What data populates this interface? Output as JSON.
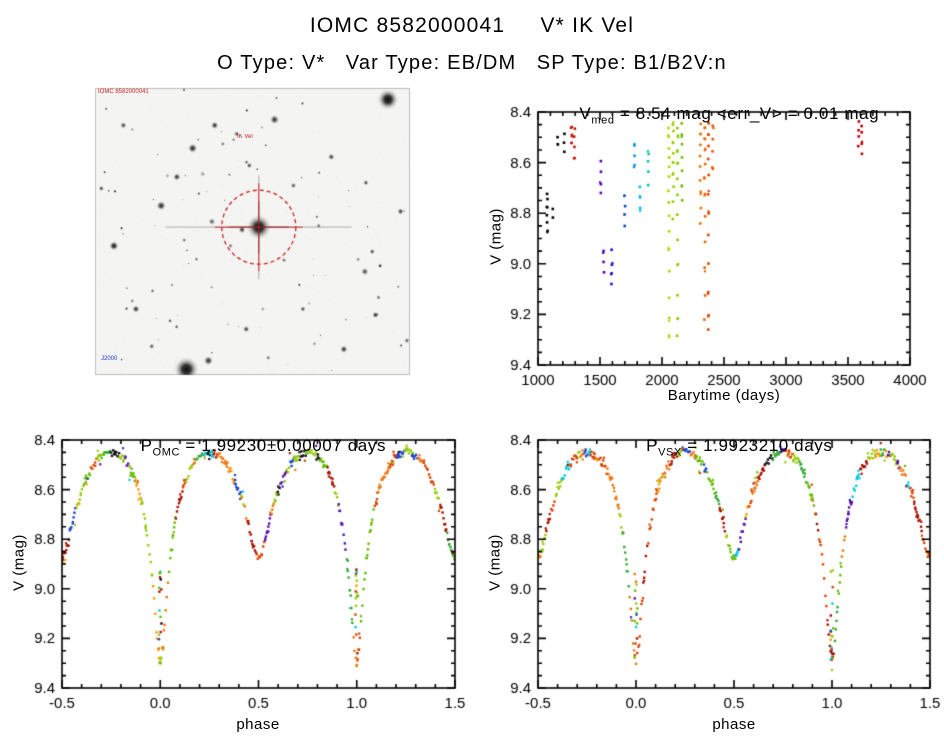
{
  "page": {
    "title": "IOMC 8582000041     V* IK Vel",
    "subtitle": "O Type: V*   Var Type: EB/DM   SP Type: B1/B2V:n"
  },
  "finder": {
    "top_left_label": "IOMC 8582000041",
    "target_label": "IK Vel",
    "bottom_left_label": "J2000",
    "circle_color": "#cc2222",
    "seed": 42,
    "random_stars": 80,
    "stars_fixed": [
      [
        52,
        48.5,
        13,
        1
      ],
      [
        93,
        4,
        11,
        1
      ],
      [
        29,
        98,
        13,
        1
      ],
      [
        36,
        95,
        5,
        0.8
      ],
      [
        6,
        55,
        5,
        0.9
      ],
      [
        2,
        35,
        3,
        0.7
      ],
      [
        31,
        21,
        5,
        0.85
      ],
      [
        38,
        13,
        4,
        0.8
      ],
      [
        45,
        16,
        3,
        0.7
      ],
      [
        26,
        31,
        4,
        0.8
      ],
      [
        21,
        41,
        5,
        0.85
      ],
      [
        49,
        27,
        3,
        0.7
      ],
      [
        57,
        11,
        5,
        0.8
      ],
      [
        75,
        24,
        3.5,
        0.75
      ],
      [
        86,
        33,
        3,
        0.7
      ],
      [
        97,
        43,
        3.5,
        0.75
      ],
      [
        88,
        57,
        3,
        0.7
      ],
      [
        79,
        91,
        4,
        0.8
      ],
      [
        66,
        77,
        3,
        0.7
      ],
      [
        48,
        84,
        3.5,
        0.75
      ],
      [
        13,
        77,
        4,
        0.8
      ],
      [
        9,
        13,
        3.5,
        0.7
      ],
      [
        60,
        60,
        2.5,
        0.6
      ],
      [
        71,
        48,
        2.5,
        0.6
      ],
      [
        63,
        34,
        3,
        0.65
      ],
      [
        43,
        55,
        2.5,
        0.6
      ],
      [
        18,
        90,
        3,
        0.65
      ],
      [
        55,
        94,
        2.5,
        0.6
      ],
      [
        90,
        73,
        2.5,
        0.6
      ],
      [
        99,
        88,
        3,
        0.6
      ],
      [
        44,
        18,
        2,
        0.6
      ]
    ]
  },
  "chart_data": [
    {
      "id": "v_vs_time",
      "type": "scatter",
      "title_prefix": "V",
      "title_sub": "med",
      "title_rest": " = 8.54 mag <err_V> = 0.01 mag",
      "xlabel": "Barytime (days)",
      "ylabel": "V (mag)",
      "xlim": [
        1000,
        4000
      ],
      "ylim": [
        8.4,
        9.4
      ],
      "y_inverted_mag_axis": true,
      "xticks": [
        1000,
        1500,
        2000,
        2500,
        3000,
        3500,
        4000
      ],
      "xtick_labels": [
        "1000",
        "1500",
        "2000",
        "2500",
        "3000",
        "3500",
        "4000"
      ],
      "yticks": [
        8.4,
        8.6,
        8.8,
        9.0,
        9.2,
        9.4
      ],
      "ytick_labels": [
        "8.4",
        "8.6",
        "8.8",
        "9.0",
        "9.2",
        "9.4"
      ],
      "x_minor_div": 5,
      "y_minor_div": 4,
      "clusters": [
        {
          "t": 1075,
          "color": "#000000",
          "v": [
            8.72,
            8.75,
            8.78,
            8.81,
            8.84,
            8.87
          ]
        },
        {
          "t": 1120,
          "color": "#000000",
          "v": [
            8.78,
            8.82
          ]
        },
        {
          "t": 1160,
          "color": "#000000",
          "v": [
            8.5,
            8.53
          ]
        },
        {
          "t": 1210,
          "color": "#000000",
          "v": [
            8.49,
            8.52,
            8.56
          ]
        },
        {
          "t": 1270,
          "color": "#cc1100",
          "v": [
            8.46,
            8.49,
            8.52
          ]
        },
        {
          "t": 1295,
          "color": "#cc1100",
          "v": [
            8.47,
            8.5,
            8.54,
            8.58
          ]
        },
        {
          "t": 1505,
          "color": "#5500bb",
          "v": [
            8.6,
            8.64,
            8.68,
            8.72
          ]
        },
        {
          "t": 1530,
          "color": "#5500bb",
          "v": [
            8.95,
            8.99,
            9.03
          ]
        },
        {
          "t": 1595,
          "color": "#2211cc",
          "v": [
            8.95,
            9.0,
            9.04,
            9.08
          ]
        },
        {
          "t": 1700,
          "color": "#0044cc",
          "v": [
            8.73,
            8.77,
            8.81,
            8.85
          ]
        },
        {
          "t": 1775,
          "color": "#0099dd",
          "v": [
            8.53,
            8.57,
            8.61
          ]
        },
        {
          "t": 1820,
          "color": "#00bbee",
          "v": [
            8.7,
            8.74,
            8.78
          ]
        },
        {
          "t": 1890,
          "color": "#00cc99",
          "v": [
            8.56,
            8.6,
            8.64,
            8.69
          ]
        },
        {
          "t": 2055,
          "color": "#aadd00",
          "v": [
            8.46,
            8.5,
            8.54,
            8.58,
            8.62,
            8.66,
            8.71,
            8.76,
            8.81,
            8.87,
            8.94,
            9.03,
            9.13,
            9.22,
            9.29
          ]
        },
        {
          "t": 2090,
          "color": "#99cc00",
          "v": [
            8.45,
            8.48,
            8.52,
            8.56,
            8.6,
            8.65,
            8.7,
            8.76,
            8.82
          ]
        },
        {
          "t": 2125,
          "color": "#88cc00",
          "v": [
            8.46,
            8.5,
            8.55,
            8.6,
            8.66,
            8.73,
            8.81,
            8.9,
            9.0,
            9.12,
            9.22,
            9.29
          ]
        },
        {
          "t": 2160,
          "color": "#66bb00",
          "v": [
            8.45,
            8.49,
            8.53,
            8.58,
            8.63,
            8.69,
            8.75
          ]
        },
        {
          "t": 2310,
          "color": "#ee7700",
          "v": [
            8.45,
            8.49,
            8.53,
            8.57,
            8.62,
            8.67,
            8.72,
            8.78,
            8.84
          ]
        },
        {
          "t": 2345,
          "color": "#ee6600",
          "v": [
            8.46,
            8.5,
            8.55,
            8.6,
            8.66,
            8.73,
            8.81,
            8.91,
            9.02,
            9.13,
            9.22
          ]
        },
        {
          "t": 2375,
          "color": "#dd4400",
          "v": [
            8.45,
            8.49,
            8.54,
            8.59,
            8.65,
            8.72,
            8.8,
            8.89,
            9.0,
            9.11,
            9.21,
            9.26
          ]
        },
        {
          "t": 2410,
          "color": "#ee5500",
          "v": [
            8.46,
            8.51,
            8.56,
            8.62
          ]
        },
        {
          "t": 3585,
          "color": "#bb0000",
          "v": [
            8.44,
            8.47,
            8.5,
            8.53
          ]
        },
        {
          "t": 3610,
          "color": "#bb0000",
          "v": [
            8.45,
            8.48,
            8.52,
            8.56
          ]
        }
      ]
    },
    {
      "id": "phase_omc",
      "type": "scatter",
      "title_prefix": "P",
      "title_sub": "OMC",
      "title_rest": " = 1.99230±0.00007 days",
      "xlabel": "phase",
      "ylabel": "V (mag)",
      "xlim": [
        -0.5,
        1.5
      ],
      "ylim": [
        8.4,
        9.4
      ],
      "y_inverted_mag_axis": true,
      "xticks": [
        -0.5,
        0.0,
        0.5,
        1.0,
        1.5
      ],
      "xtick_labels": [
        "-0.5",
        "0.0",
        "0.5",
        "1.0",
        "1.5"
      ],
      "yticks": [
        8.4,
        8.6,
        8.8,
        9.0,
        9.2,
        9.4
      ],
      "ytick_labels": [
        "8.4",
        "8.6",
        "8.8",
        "9.0",
        "9.2",
        "9.4"
      ],
      "x_minor_div": 5,
      "y_minor_div": 4,
      "seed": 7,
      "scatter_mag": 0.03,
      "template_curve": [
        [
          0.0,
          9.3
        ],
        [
          0.015,
          9.22
        ],
        [
          0.03,
          9.05
        ],
        [
          0.05,
          8.88
        ],
        [
          0.07,
          8.76
        ],
        [
          0.09,
          8.67
        ],
        [
          0.12,
          8.58
        ],
        [
          0.15,
          8.52
        ],
        [
          0.18,
          8.48
        ],
        [
          0.22,
          8.455
        ],
        [
          0.25,
          8.45
        ],
        [
          0.28,
          8.455
        ],
        [
          0.31,
          8.47
        ],
        [
          0.34,
          8.5
        ],
        [
          0.37,
          8.545
        ],
        [
          0.4,
          8.6
        ],
        [
          0.43,
          8.68
        ],
        [
          0.46,
          8.78
        ],
        [
          0.48,
          8.85
        ],
        [
          0.5,
          8.88
        ],
        [
          0.52,
          8.85
        ],
        [
          0.54,
          8.78
        ],
        [
          0.57,
          8.68
        ],
        [
          0.6,
          8.6
        ],
        [
          0.63,
          8.545
        ],
        [
          0.66,
          8.5
        ],
        [
          0.69,
          8.47
        ],
        [
          0.72,
          8.455
        ],
        [
          0.75,
          8.45
        ],
        [
          0.78,
          8.455
        ],
        [
          0.82,
          8.48
        ],
        [
          0.85,
          8.52
        ],
        [
          0.88,
          8.58
        ],
        [
          0.91,
          8.67
        ],
        [
          0.93,
          8.76
        ],
        [
          0.95,
          8.88
        ],
        [
          0.97,
          9.05
        ],
        [
          0.985,
          9.22
        ],
        [
          1.0,
          9.3
        ]
      ],
      "palette": [
        [
          "#aa1100",
          2
        ],
        [
          "#dd4400",
          2.5
        ],
        [
          "#ee7711",
          2.5
        ],
        [
          "#ff9900",
          1
        ],
        [
          "#99cc11",
          2.5
        ],
        [
          "#66bb00",
          2
        ],
        [
          "#33aa33",
          1
        ],
        [
          "#00ccdd",
          1.2
        ],
        [
          "#2244cc",
          0.8
        ],
        [
          "#5511aa",
          0.8
        ],
        [
          "#111111",
          0.5
        ]
      ]
    },
    {
      "id": "phase_vsx",
      "type": "scatter",
      "title_prefix": "P",
      "title_sub": "VSX",
      "title_rest": " = 1.9923210 days",
      "xlabel": "phase",
      "ylabel": "V (mag)",
      "xlim": [
        -0.5,
        1.5
      ],
      "ylim": [
        8.4,
        9.4
      ],
      "y_inverted_mag_axis": true,
      "xticks": [
        -0.5,
        0.0,
        0.5,
        1.0,
        1.5
      ],
      "xtick_labels": [
        "-0.5",
        "0.0",
        "0.5",
        "1.0",
        "1.5"
      ],
      "yticks": [
        8.4,
        8.6,
        8.8,
        9.0,
        9.2,
        9.4
      ],
      "ytick_labels": [
        "8.4",
        "8.6",
        "8.8",
        "9.0",
        "9.2",
        "9.4"
      ],
      "x_minor_div": 5,
      "y_minor_div": 4,
      "seed": 13,
      "scatter_mag": 0.03,
      "template_curve": [
        [
          0.0,
          9.3
        ],
        [
          0.015,
          9.22
        ],
        [
          0.03,
          9.05
        ],
        [
          0.05,
          8.88
        ],
        [
          0.07,
          8.76
        ],
        [
          0.09,
          8.67
        ],
        [
          0.12,
          8.58
        ],
        [
          0.15,
          8.52
        ],
        [
          0.18,
          8.48
        ],
        [
          0.22,
          8.455
        ],
        [
          0.25,
          8.45
        ],
        [
          0.28,
          8.455
        ],
        [
          0.31,
          8.47
        ],
        [
          0.34,
          8.5
        ],
        [
          0.37,
          8.545
        ],
        [
          0.4,
          8.6
        ],
        [
          0.43,
          8.68
        ],
        [
          0.46,
          8.78
        ],
        [
          0.48,
          8.85
        ],
        [
          0.5,
          8.88
        ],
        [
          0.52,
          8.85
        ],
        [
          0.54,
          8.78
        ],
        [
          0.57,
          8.68
        ],
        [
          0.6,
          8.6
        ],
        [
          0.63,
          8.545
        ],
        [
          0.66,
          8.5
        ],
        [
          0.69,
          8.47
        ],
        [
          0.72,
          8.455
        ],
        [
          0.75,
          8.45
        ],
        [
          0.78,
          8.455
        ],
        [
          0.82,
          8.48
        ],
        [
          0.85,
          8.52
        ],
        [
          0.88,
          8.58
        ],
        [
          0.91,
          8.67
        ],
        [
          0.93,
          8.76
        ],
        [
          0.95,
          8.88
        ],
        [
          0.97,
          9.05
        ],
        [
          0.985,
          9.22
        ],
        [
          1.0,
          9.3
        ]
      ],
      "palette": [
        [
          "#aa1100",
          2
        ],
        [
          "#dd4400",
          2.5
        ],
        [
          "#ee7711",
          2.5
        ],
        [
          "#ff9900",
          1
        ],
        [
          "#99cc11",
          2.5
        ],
        [
          "#66bb00",
          2
        ],
        [
          "#33aa33",
          1
        ],
        [
          "#00ccdd",
          1.2
        ],
        [
          "#2244cc",
          0.8
        ],
        [
          "#5511aa",
          0.8
        ],
        [
          "#111111",
          0.5
        ]
      ]
    }
  ]
}
